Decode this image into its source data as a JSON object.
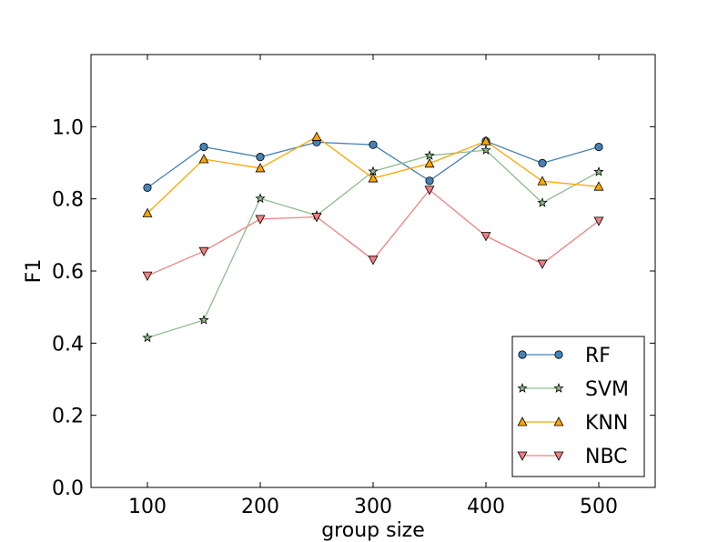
{
  "chart_data": {
    "type": "line",
    "title": "",
    "xlabel": "group  size",
    "ylabel": "F1",
    "xlim": [
      50,
      550
    ],
    "ylim": [
      0,
      1.2
    ],
    "xticks": [
      100,
      200,
      300,
      400,
      500
    ],
    "yticks": [
      0.0,
      0.2,
      0.4,
      0.6,
      0.8,
      1.0
    ],
    "ytick_labels": [
      "0.0",
      "0.2",
      "0.4",
      "0.6",
      "0.8",
      "1.0"
    ],
    "grid": false,
    "legend_position": "lower-right",
    "x": [
      100,
      150,
      200,
      250,
      300,
      350,
      400,
      450,
      500
    ],
    "series": [
      {
        "name": "RF",
        "marker": "circle",
        "color": "#4682b4",
        "values": [
          0.831,
          0.944,
          0.916,
          0.957,
          0.95,
          0.85,
          0.96,
          0.899,
          0.944
        ]
      },
      {
        "name": "SVM",
        "marker": "star",
        "color": "#8fbc8f",
        "values": [
          0.415,
          0.464,
          0.801,
          0.754,
          0.876,
          0.92,
          0.935,
          0.789,
          0.875
        ]
      },
      {
        "name": "KNN",
        "marker": "triangle-up",
        "color": "#ffa500",
        "values": [
          0.76,
          0.91,
          0.885,
          0.972,
          0.857,
          0.898,
          0.96,
          0.849,
          0.834
        ]
      },
      {
        "name": "NBC",
        "marker": "triangle-down",
        "color": "#f08080",
        "values": [
          0.587,
          0.655,
          0.744,
          0.75,
          0.631,
          0.825,
          0.697,
          0.62,
          0.739
        ]
      }
    ]
  }
}
